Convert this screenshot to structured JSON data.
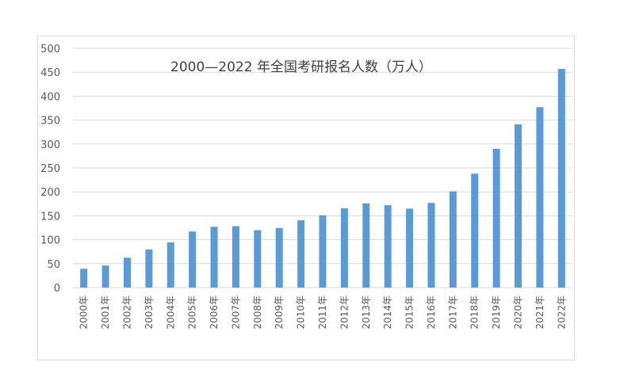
{
  "chart_data": {
    "type": "bar",
    "title": "2000—2022 年全国考研报名人数（万人）",
    "xlabel": "",
    "ylabel": "",
    "ylim": [
      0,
      500
    ],
    "yticks": [
      0,
      50,
      100,
      150,
      200,
      250,
      300,
      350,
      400,
      450,
      500
    ],
    "grid": true,
    "legend": "none",
    "bar_color": "#5B9BD5",
    "categories": [
      "2000年",
      "2001年",
      "2002年",
      "2003年",
      "2004年",
      "2005年",
      "2006年",
      "2007年",
      "2008年",
      "2009年",
      "2010年",
      "2011年",
      "2012年",
      "2013年",
      "2014年",
      "2015年",
      "2016年",
      "2017年",
      "2018年",
      "2019年",
      "2020年",
      "2021年",
      "2022年"
    ],
    "values": [
      39.2,
      46,
      62.4,
      79.7,
      94.5,
      117.2,
      127.1,
      128.2,
      120,
      124.6,
      140.6,
      151.1,
      165.6,
      176,
      172,
      164.9,
      177,
      201,
      238,
      290,
      341,
      377,
      457
    ]
  }
}
